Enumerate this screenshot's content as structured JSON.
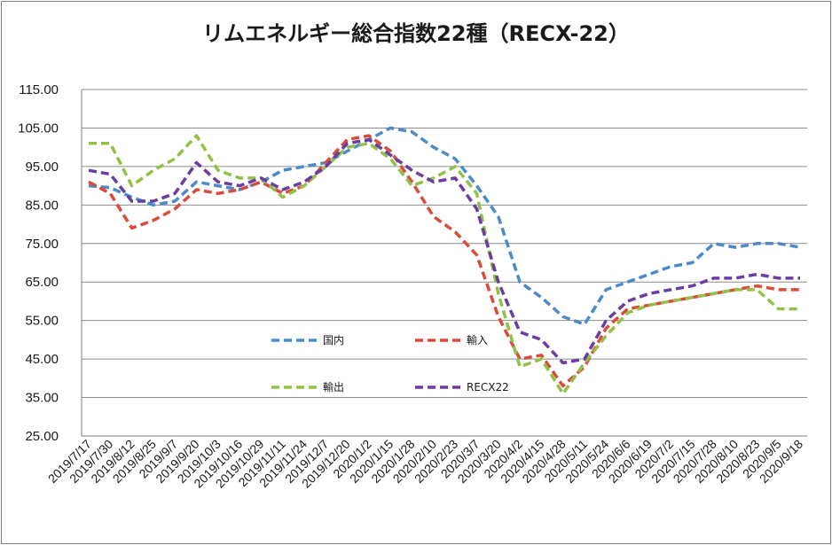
{
  "chart_data": {
    "type": "line",
    "title": "リムエネルギー総合指数22種（RECX-22）",
    "xlabel": "",
    "ylabel": "",
    "ylim": [
      25,
      115
    ],
    "yticks": [
      "25.00",
      "35.00",
      "45.00",
      "55.00",
      "65.00",
      "75.00",
      "85.00",
      "95.00",
      "105.00",
      "115.00"
    ],
    "categories": [
      "2019/7/17",
      "2019/7/30",
      "2019/8/12",
      "2019/8/25",
      "2019/9/7",
      "2019/9/20",
      "2019/10/3",
      "2019/10/16",
      "2019/10/29",
      "2019/11/11",
      "2019/11/24",
      "2019/12/7",
      "2019/12/20",
      "2020/1/2",
      "2020/1/15",
      "2020/1/28",
      "2020/2/10",
      "2020/2/23",
      "2020/3/7",
      "2020/3/20",
      "2020/4/2",
      "2020/4/15",
      "2020/4/28",
      "2020/5/11",
      "2020/5/24",
      "2020/6/6",
      "2020/6/19",
      "2020/7/2",
      "2020/7/15",
      "2020/7/28",
      "2020/8/10",
      "2020/8/23",
      "2020/9/5",
      "2020/9/18"
    ],
    "grid": true,
    "legend_position": "inside-lower-left",
    "series": [
      {
        "name": "国内",
        "color": "#4a8bc8",
        "values": [
          90,
          89.5,
          87,
          85,
          86,
          91,
          90,
          89,
          91,
          94,
          95,
          96,
          99,
          102,
          105,
          104,
          100,
          97,
          90,
          82,
          65,
          61,
          56,
          54,
          63,
          65,
          67,
          69,
          70,
          75,
          74,
          75,
          75,
          74
        ]
      },
      {
        "name": "輸入",
        "color": "#d94b3b",
        "values": [
          91,
          88,
          79,
          81,
          84,
          89,
          88,
          89,
          91,
          88,
          90,
          96,
          102,
          103,
          99,
          91,
          82,
          78,
          72,
          56,
          45,
          46,
          38,
          43,
          53,
          58,
          59,
          60,
          61,
          62,
          63,
          64,
          63,
          63
        ]
      },
      {
        "name": "輸出",
        "color": "#93c046",
        "values": [
          101,
          101,
          90,
          94,
          97,
          103,
          94,
          92,
          92,
          87,
          90,
          95,
          100,
          101,
          97,
          90,
          92,
          95,
          88,
          62,
          43,
          45,
          36,
          44,
          51,
          57,
          59,
          60,
          61,
          62,
          63,
          63,
          58,
          58
        ]
      },
      {
        "name": "RECX22",
        "color": "#6a3da0",
        "values": [
          94,
          93,
          86,
          86,
          88,
          96,
          91,
          90,
          92,
          89,
          91,
          95,
          101,
          102,
          98,
          94,
          91,
          92,
          84,
          65,
          52,
          50,
          44,
          45,
          55,
          60,
          62,
          63,
          64,
          66,
          66,
          67,
          66,
          66
        ]
      }
    ]
  }
}
